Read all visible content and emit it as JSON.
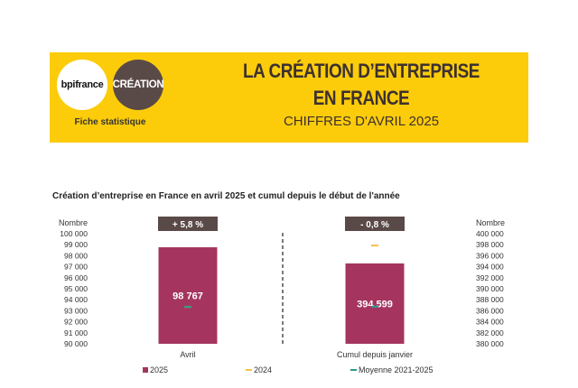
{
  "header": {
    "logo_left": "bpifrance",
    "logo_right": "CRÉATION",
    "subtitle_left": "Fiche statistique",
    "title_line1": "LA CRÉATION D’ENTREPRISE",
    "title_line2": "EN FRANCE",
    "title_line3": "CHIFFRES D'AVRIL 2025"
  },
  "colors": {
    "banner": "#fccc0a",
    "bar_2025": "#a5355e",
    "mark_2024": "#f5c242",
    "mark_avg": "#2a9d8f",
    "badge": "#5a4a47"
  },
  "chart_data": {
    "type": "bar",
    "title": "Création d’entreprise en France en avril 2025 et cumul depuis le début de l'année",
    "categories": [
      "Avril",
      "Cumul depuis janvier"
    ],
    "left_axis": {
      "label": "Nombre",
      "ylim": [
        90000,
        100000
      ],
      "ticks": [
        "100 000",
        "99 000",
        "98 000",
        "97 000",
        "96 000",
        "95 000",
        "94 000",
        "93 000",
        "92 000",
        "91 000",
        "90 000"
      ]
    },
    "right_axis": {
      "label": "Nombre",
      "ylim": [
        380000,
        400000
      ],
      "ticks": [
        "400 000",
        "398 000",
        "396 000",
        "394 000",
        "392 000",
        "390 000",
        "388 000",
        "386 000",
        "384 000",
        "382 000",
        "380 000"
      ]
    },
    "series": [
      {
        "name": "2025",
        "values": [
          98767,
          394599
        ],
        "labels": [
          "98 767",
          "394 599"
        ]
      },
      {
        "name": "2024",
        "values": [
          93350,
          397850
        ]
      },
      {
        "name": "Moyenne 2021-2025",
        "values": [
          93350,
          386750
        ]
      }
    ],
    "badges": [
      "+ 5,8 %",
      "- 0,8 %"
    ]
  }
}
